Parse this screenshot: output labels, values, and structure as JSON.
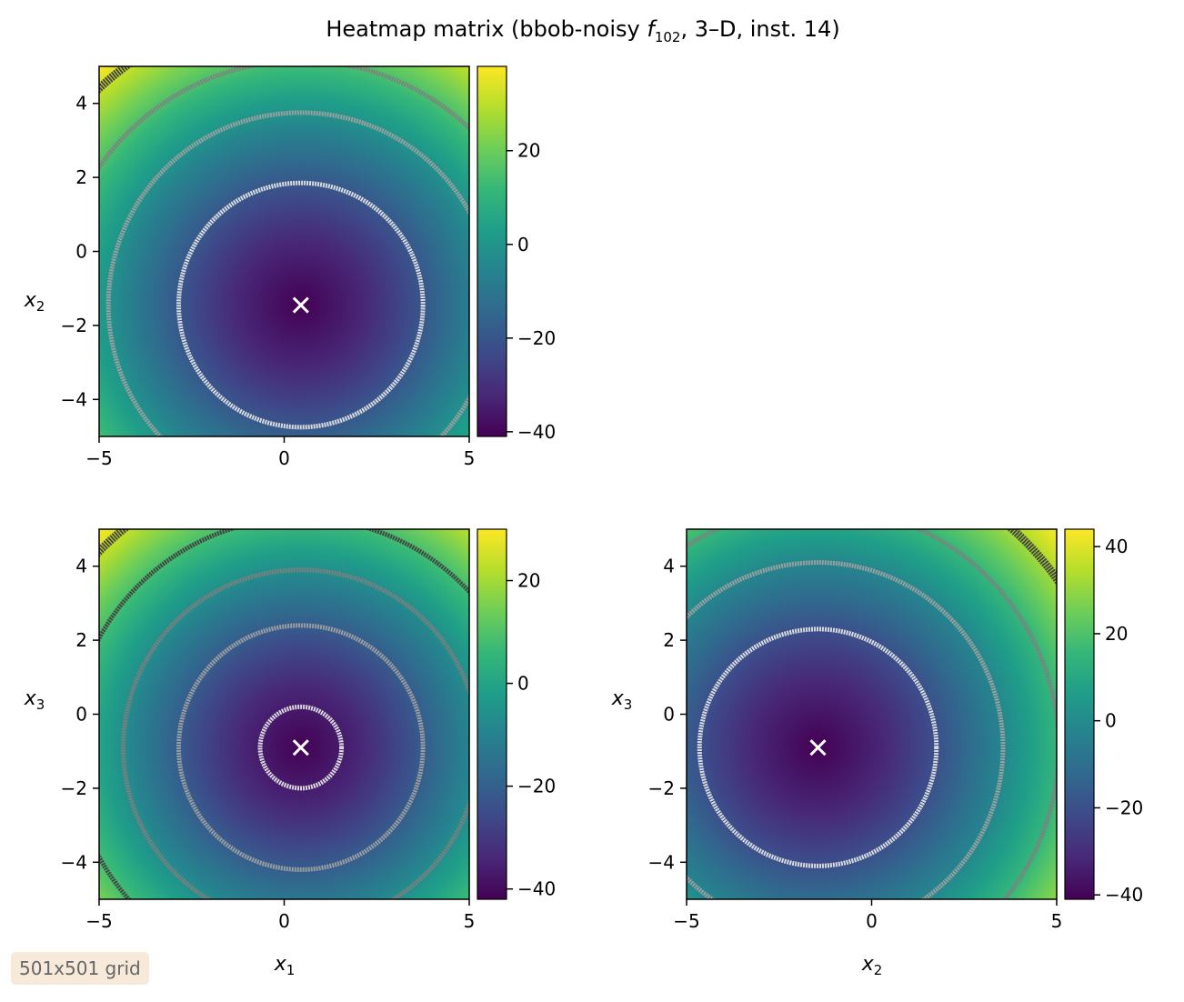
{
  "title": {
    "prefix": "Heatmap matrix (bbob-noisy ",
    "func_letter": "f",
    "func_sub": "102",
    "suffix": ", 3–D, inst. 14)"
  },
  "badge": "501x501 grid",
  "colormap": [
    "#440154",
    "#482878",
    "#3e4989",
    "#31688e",
    "#26828e",
    "#1f9e89",
    "#35b779",
    "#6ece58",
    "#b5de2b",
    "#fde725"
  ],
  "contour_colors": [
    "#e0e0e0",
    "#a0a0a0",
    "#808080",
    "#404040"
  ],
  "chart_data": [
    {
      "type": "heatmap",
      "xlabel_var": "x",
      "xlabel_sub": "1",
      "ylabel_var": "x",
      "ylabel_sub": "2",
      "xlim": [
        -5,
        5
      ],
      "ylim": [
        -5,
        5
      ],
      "x_ticks": [
        -5,
        0,
        5
      ],
      "y_ticks": [
        -4,
        -2,
        0,
        2,
        4
      ],
      "x_tick_labels": [
        "−5",
        "0",
        "5"
      ],
      "y_tick_labels": [
        "−4",
        "−2",
        "0",
        "2",
        "4"
      ],
      "optimum": [
        0.45,
        -1.45
      ],
      "value_range": [
        -41,
        38
      ],
      "colorbar_ticks": [
        -40,
        -20,
        0,
        20
      ],
      "colorbar_tick_labels": [
        "−40",
        "−20",
        "0",
        "20"
      ],
      "contour_radii": [
        3.3,
        5.2,
        6.6,
        8.0
      ]
    },
    {
      "type": "heatmap",
      "xlabel_var": "x",
      "xlabel_sub": "1",
      "ylabel_var": "x",
      "ylabel_sub": "3",
      "xlim": [
        -5,
        5
      ],
      "ylim": [
        -5,
        5
      ],
      "x_ticks": [
        -5,
        0,
        5
      ],
      "y_ticks": [
        -4,
        -2,
        0,
        2,
        4
      ],
      "x_tick_labels": [
        "−5",
        "0",
        "5"
      ],
      "y_tick_labels": [
        "−4",
        "−2",
        "0",
        "2",
        "4"
      ],
      "optimum": [
        0.45,
        -0.9
      ],
      "value_range": [
        -42,
        30
      ],
      "colorbar_ticks": [
        -40,
        -20,
        0,
        20
      ],
      "colorbar_tick_labels": [
        "−40",
        "−20",
        "0",
        "20"
      ],
      "contour_radii": [
        1.1,
        3.3,
        4.8,
        6.2,
        7.6
      ]
    },
    {
      "type": "heatmap",
      "xlabel_var": "x",
      "xlabel_sub": "2",
      "ylabel_var": "x",
      "ylabel_sub": "3",
      "xlim": [
        -5,
        5
      ],
      "ylim": [
        -5,
        5
      ],
      "x_ticks": [
        -5,
        0,
        5
      ],
      "y_ticks": [
        -4,
        -2,
        0,
        2,
        4
      ],
      "x_tick_labels": [
        "−5",
        "0",
        "5"
      ],
      "y_tick_labels": [
        "−4",
        "−2",
        "0",
        "2",
        "4"
      ],
      "optimum": [
        -1.45,
        -0.9
      ],
      "value_range": [
        -41,
        44
      ],
      "colorbar_ticks": [
        -40,
        -20,
        0,
        20,
        40
      ],
      "colorbar_tick_labels": [
        "−40",
        "−20",
        "0",
        "20",
        "40"
      ],
      "contour_radii": [
        3.2,
        5.0,
        6.5,
        7.9
      ]
    }
  ]
}
